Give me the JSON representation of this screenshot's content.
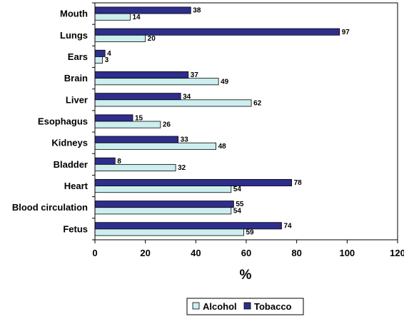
{
  "chart_data": {
    "type": "bar",
    "orientation": "horizontal",
    "categories": [
      "Mouth",
      "Lungs",
      "Ears",
      "Brain",
      "Liver",
      "Esophagus",
      "Kidneys",
      "Bladder",
      "Heart",
      "Blood circulation",
      "Fetus"
    ],
    "series": [
      {
        "name": "Tobacco",
        "color": "#2e2e8c",
        "values": [
          38,
          97,
          4,
          37,
          34,
          15,
          33,
          8,
          78,
          55,
          74
        ]
      },
      {
        "name": "Alcohol",
        "color": "#cceeee",
        "values": [
          14,
          20,
          3,
          49,
          62,
          26,
          48,
          32,
          54,
          54,
          59
        ]
      }
    ],
    "xlabel": "%",
    "ylabel": "",
    "xlim": [
      0,
      120
    ],
    "xticks": [
      "0",
      "20",
      "40",
      "60",
      "80",
      "100",
      "120"
    ],
    "grid": false,
    "data_labels": true,
    "legend": {
      "placement": "bottom-center",
      "entries": [
        "Alcohol",
        "Tobacco"
      ]
    }
  }
}
